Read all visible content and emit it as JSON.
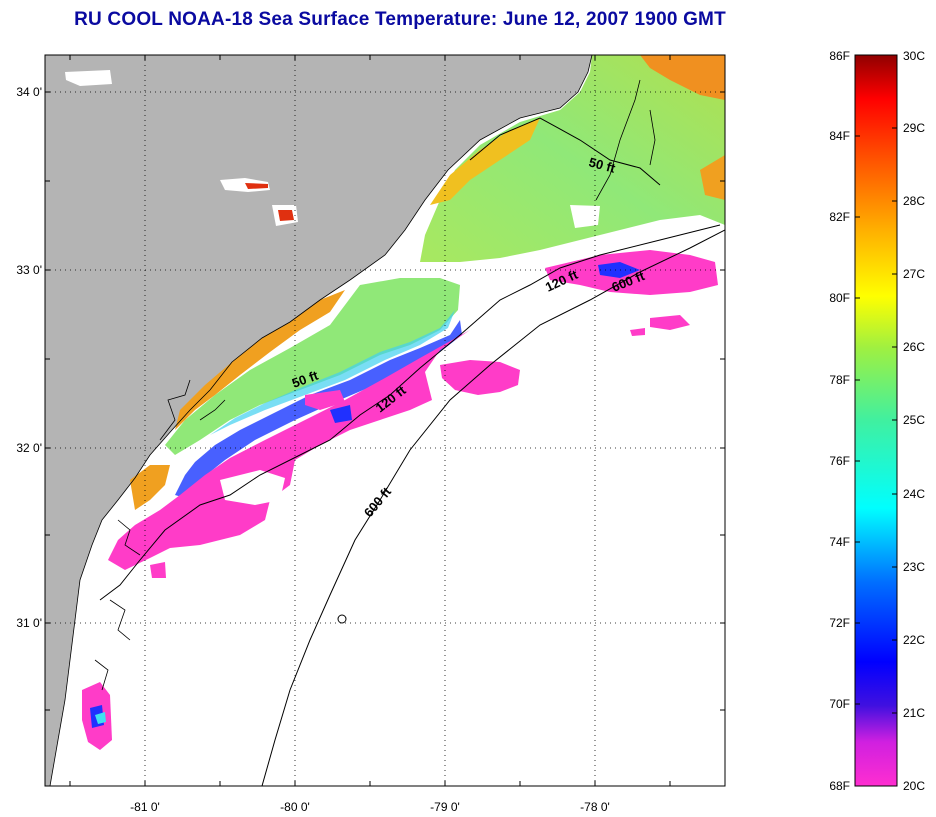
{
  "title": "RU COOL  NOAA-18  Sea Surface Temperature:  June 12, 2007 1900 GMT",
  "map": {
    "lat_labels": [
      "34 0'",
      "33 0'",
      "32 0'",
      "31 0'"
    ],
    "lon_labels": [
      "-81 0'",
      "-80 0'",
      "-79 0'",
      "-78 0'"
    ],
    "contours": [
      {
        "label": "50 ft"
      },
      {
        "label": "50 ft"
      },
      {
        "label": "120 ft"
      },
      {
        "label": "120 ft"
      },
      {
        "label": "600 ft"
      },
      {
        "label": "600 ft"
      }
    ]
  },
  "colorbar": {
    "fahrenheit_labels": [
      "86F",
      "84F",
      "82F",
      "80F",
      "78F",
      "76F",
      "74F",
      "72F",
      "70F",
      "68F"
    ],
    "celsius_labels": [
      "30C",
      "29C",
      "28C",
      "27C",
      "26C",
      "25C",
      "24C",
      "23C",
      "22C",
      "21C",
      "20C"
    ]
  },
  "colors": {
    "title": "#0a0aa0",
    "land": "#b4b4b4",
    "no_data": "#ffffff",
    "warm_nearshore": "#f0a020",
    "mid_shelf": "#8ce070",
    "cold_upwelling": "#ff3cc8",
    "cold_core": "#1e32ff"
  }
}
